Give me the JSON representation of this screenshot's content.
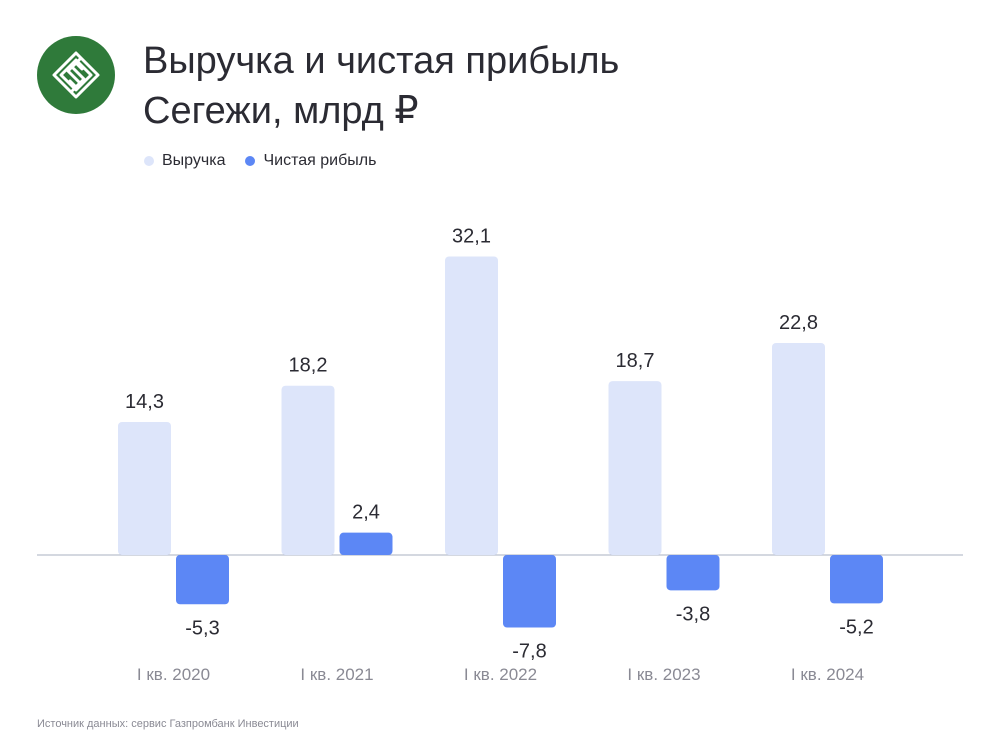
{
  "header": {
    "title_line1": "Выручка и чистая прибыль",
    "title_line2": "Сегежи, млрд ₽"
  },
  "colors": {
    "revenue": "#dde5fa",
    "net_profit": "#5c87f5",
    "logo_bg": "#2f7a3a"
  },
  "logo_icon": "segezha-logo-icon",
  "chart_data": {
    "type": "bar",
    "title": "Выручка и чистая прибыль Сегежи, млрд ₽",
    "categories": [
      "I кв. 2020",
      "I кв. 2021",
      "I кв. 2022",
      "I кв. 2023",
      "I кв. 2024"
    ],
    "series": [
      {
        "name": "Выручка",
        "values": [
          14.3,
          18.2,
          32.1,
          18.7,
          22.8
        ],
        "labels": [
          "14,3",
          "18,2",
          "32,1",
          "18,7",
          "22,8"
        ]
      },
      {
        "name": "Чистая рибыль",
        "values": [
          -5.3,
          2.4,
          -7.8,
          -3.8,
          -5.2
        ],
        "labels": [
          "-5,3",
          "2,4",
          "-7,8",
          "-3,8",
          "-5,2"
        ]
      }
    ],
    "xlabel": "",
    "ylabel": "",
    "ylim": [
      -8,
      33
    ],
    "grid": false,
    "legend": "top-left"
  },
  "footer": {
    "source": "Источник данных: сервис Газпромбанк Инвестиции"
  }
}
